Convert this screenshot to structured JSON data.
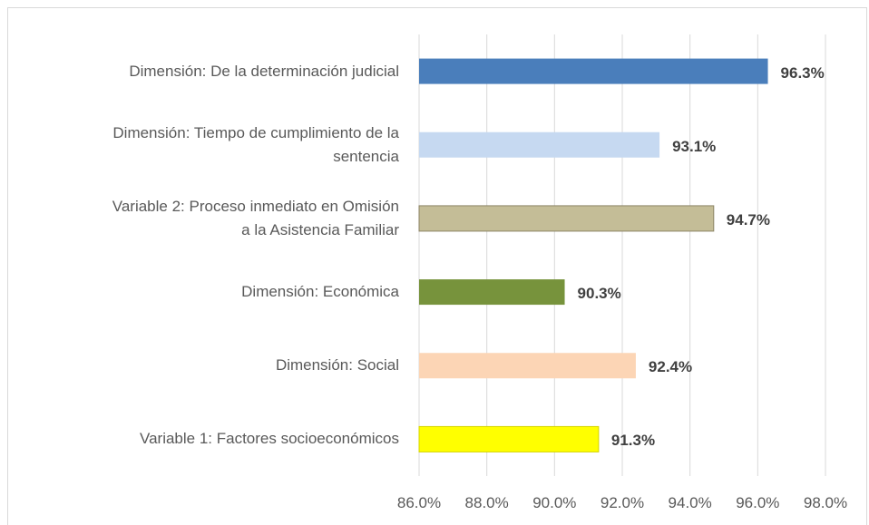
{
  "chart_data": {
    "type": "bar",
    "orientation": "horizontal",
    "categories": [
      "Dimensión: De la determinación judicial",
      "Dimensión: Tiempo de cumplimiento de la\nsentencia",
      "Variable 2: Proceso inmediato en Omisión\na la Asistencia Familiar",
      "Dimensión: Económica",
      "Dimensión: Social ",
      "Variable 1: Factores socioeconómicos"
    ],
    "values": [
      96.3,
      93.1,
      94.7,
      90.3,
      92.4,
      91.3
    ],
    "value_labels": [
      "96.3%",
      "93.1%",
      "94.7%",
      "90.3%",
      "92.4%",
      "91.3%"
    ],
    "colors": [
      "#4a7ebb",
      "#c6d9f1",
      "#c4bd97",
      "#77933c",
      "#fcd5b5",
      "#ffff00"
    ],
    "xlim": [
      86,
      98
    ],
    "xticks": [
      {
        "value": 86,
        "label": "86.0%"
      },
      {
        "value": 88,
        "label": "88.0%"
      },
      {
        "value": 90,
        "label": "90.0%"
      },
      {
        "value": 92,
        "label": "92.0%"
      },
      {
        "value": 94,
        "label": "94.0%"
      },
      {
        "value": 96,
        "label": "96.0%"
      },
      {
        "value": 98,
        "label": "98.0%"
      }
    ],
    "grid": true
  }
}
